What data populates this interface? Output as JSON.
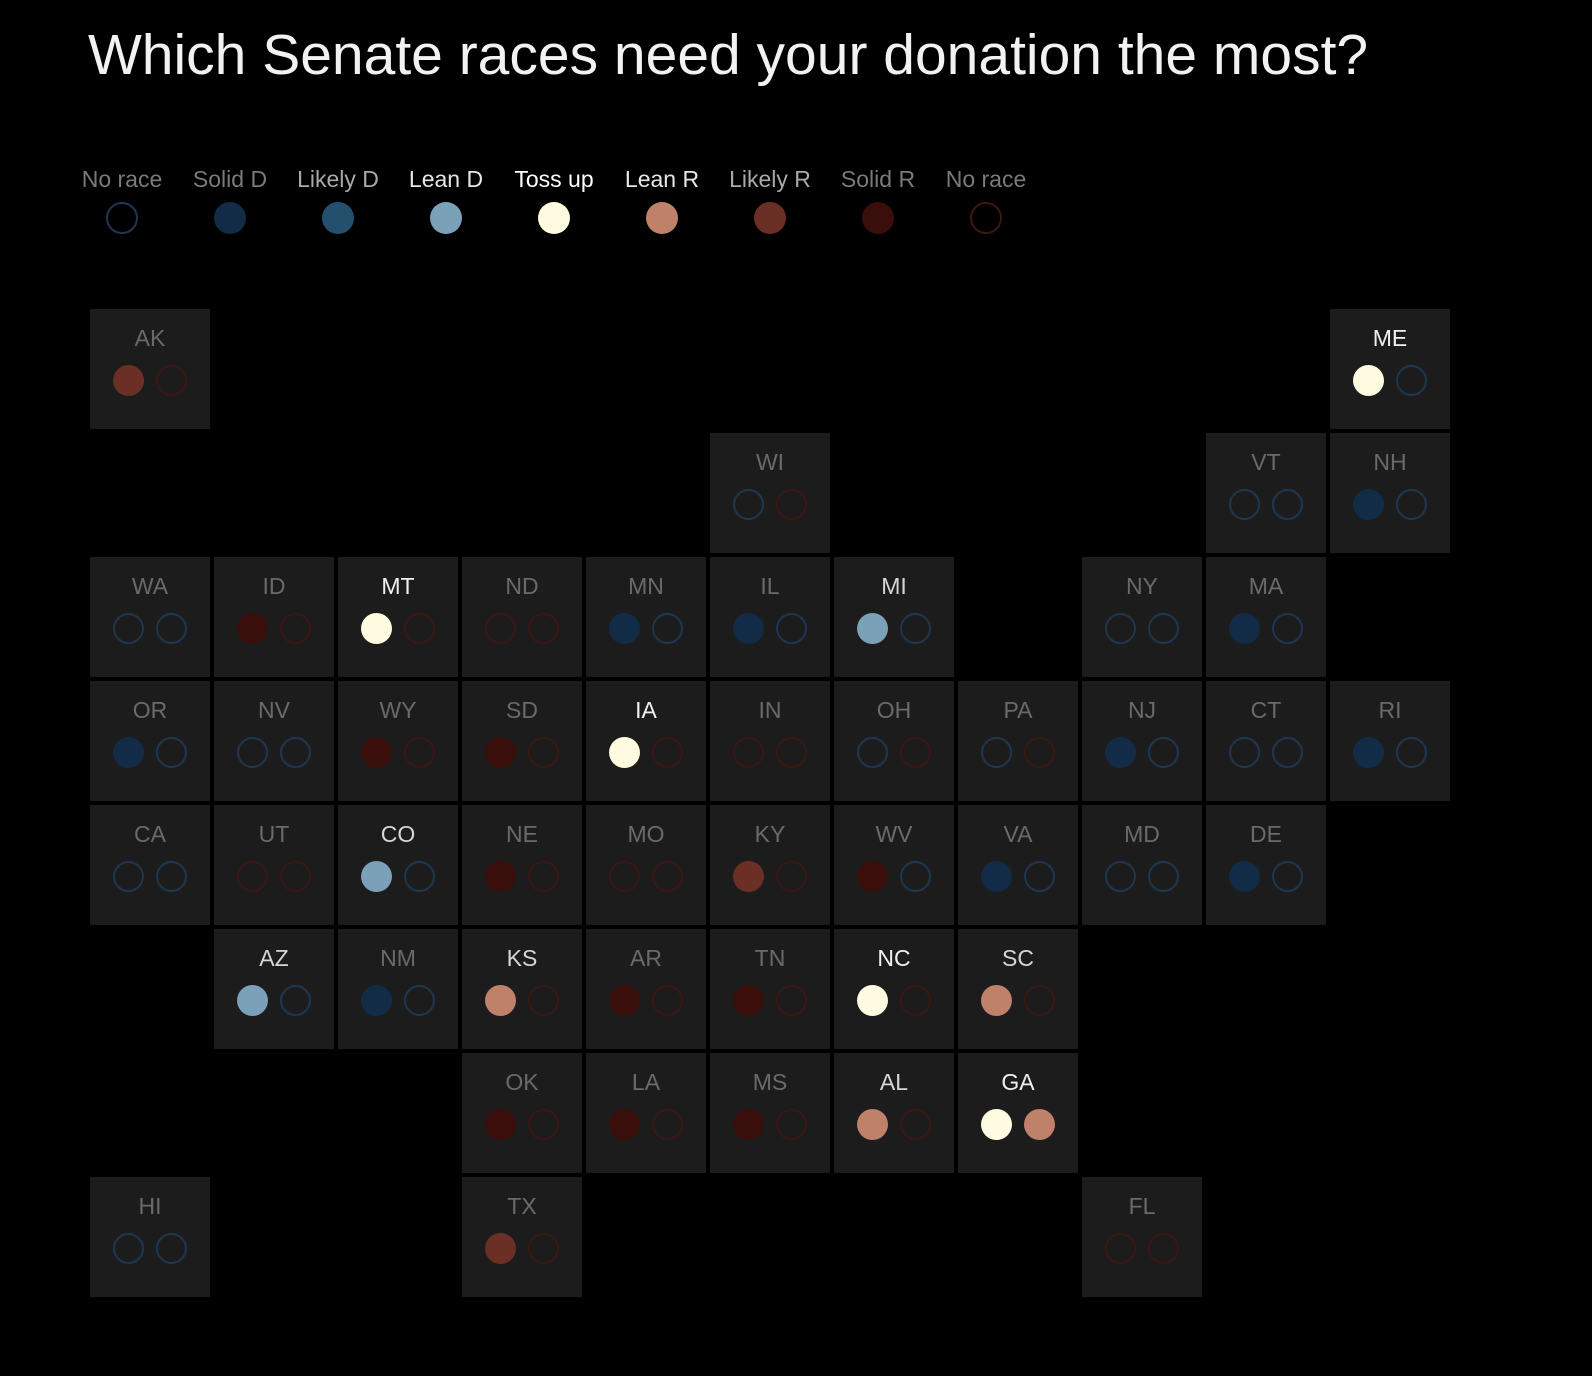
{
  "title": "Which Senate races need your donation the most?",
  "categories": {
    "none_d": {
      "label": "No race",
      "fill": null,
      "ring": "#1e3650",
      "label_color": "#7a7a7a"
    },
    "solid_d": {
      "label": "Solid D",
      "fill": "#122b47",
      "label_color": "#7a7a7a"
    },
    "likely_d": {
      "label": "Likely D",
      "fill": "#23506d",
      "label_color": "#a9a9a9"
    },
    "lean_d": {
      "label": "Lean D",
      "fill": "#7aa1b8",
      "label_color": "#e6e6e6"
    },
    "tossup": {
      "label": "Toss up",
      "fill": "#fffbe0",
      "label_color": "#ffffff"
    },
    "lean_r": {
      "label": "Lean R",
      "fill": "#c0816a",
      "label_color": "#e6e6e6"
    },
    "likely_r": {
      "label": "Likely R",
      "fill": "#6c2f26",
      "label_color": "#a9a9a9"
    },
    "solid_r": {
      "label": "Solid R",
      "fill": "#3a0f0b",
      "label_color": "#7a7a7a"
    },
    "none_r": {
      "label": "No race",
      "fill": null,
      "ring": "#3a1714",
      "label_color": "#7a7a7a"
    }
  },
  "legend_order": [
    "none_d",
    "solid_d",
    "likely_d",
    "lean_d",
    "tossup",
    "lean_r",
    "likely_r",
    "solid_r",
    "none_r"
  ],
  "states": [
    {
      "abbr": "AK",
      "race1": "likely_r",
      "race2": "none_r"
    },
    {
      "abbr": "ME",
      "race1": "tossup",
      "race2": "none_d"
    },
    {
      "abbr": "WI",
      "race1": "none_d",
      "race2": "none_r"
    },
    {
      "abbr": "VT",
      "race1": "none_d",
      "race2": "none_d"
    },
    {
      "abbr": "NH",
      "race1": "solid_d",
      "race2": "none_d"
    },
    {
      "abbr": "WA",
      "race1": "none_d",
      "race2": "none_d"
    },
    {
      "abbr": "ID",
      "race1": "solid_r",
      "race2": "none_r"
    },
    {
      "abbr": "MT",
      "race1": "tossup",
      "race2": "none_r"
    },
    {
      "abbr": "ND",
      "race1": "none_r",
      "race2": "none_r"
    },
    {
      "abbr": "MN",
      "race1": "solid_d",
      "race2": "none_d"
    },
    {
      "abbr": "IL",
      "race1": "solid_d",
      "race2": "none_d"
    },
    {
      "abbr": "MI",
      "race1": "lean_d",
      "race2": "none_d"
    },
    {
      "abbr": "NY",
      "race1": "none_d",
      "race2": "none_d"
    },
    {
      "abbr": "MA",
      "race1": "solid_d",
      "race2": "none_d"
    },
    {
      "abbr": "OR",
      "race1": "solid_d",
      "race2": "none_d"
    },
    {
      "abbr": "NV",
      "race1": "none_d",
      "race2": "none_d"
    },
    {
      "abbr": "WY",
      "race1": "solid_r",
      "race2": "none_r"
    },
    {
      "abbr": "SD",
      "race1": "solid_r",
      "race2": "none_r"
    },
    {
      "abbr": "IA",
      "race1": "tossup",
      "race2": "none_r"
    },
    {
      "abbr": "IN",
      "race1": "none_r",
      "race2": "none_r"
    },
    {
      "abbr": "OH",
      "race1": "none_d",
      "race2": "none_r"
    },
    {
      "abbr": "PA",
      "race1": "none_d",
      "race2": "none_r"
    },
    {
      "abbr": "NJ",
      "race1": "solid_d",
      "race2": "none_d"
    },
    {
      "abbr": "CT",
      "race1": "none_d",
      "race2": "none_d"
    },
    {
      "abbr": "RI",
      "race1": "solid_d",
      "race2": "none_d"
    },
    {
      "abbr": "CA",
      "race1": "none_d",
      "race2": "none_d"
    },
    {
      "abbr": "UT",
      "race1": "none_r",
      "race2": "none_r"
    },
    {
      "abbr": "CO",
      "race1": "lean_d",
      "race2": "none_d"
    },
    {
      "abbr": "NE",
      "race1": "solid_r",
      "race2": "none_r"
    },
    {
      "abbr": "MO",
      "race1": "none_r",
      "race2": "none_r"
    },
    {
      "abbr": "KY",
      "race1": "likely_r",
      "race2": "none_r"
    },
    {
      "abbr": "WV",
      "race1": "solid_r",
      "race2": "none_d"
    },
    {
      "abbr": "VA",
      "race1": "solid_d",
      "race2": "none_d"
    },
    {
      "abbr": "MD",
      "race1": "none_d",
      "race2": "none_d"
    },
    {
      "abbr": "DE",
      "race1": "solid_d",
      "race2": "none_d"
    },
    {
      "abbr": "AZ",
      "race1": "lean_d",
      "race2": "none_d"
    },
    {
      "abbr": "NM",
      "race1": "solid_d",
      "race2": "none_d"
    },
    {
      "abbr": "KS",
      "race1": "lean_r",
      "race2": "none_r"
    },
    {
      "abbr": "AR",
      "race1": "solid_r",
      "race2": "none_r"
    },
    {
      "abbr": "TN",
      "race1": "solid_r",
      "race2": "none_r"
    },
    {
      "abbr": "NC",
      "race1": "tossup",
      "race2": "none_r"
    },
    {
      "abbr": "SC",
      "race1": "lean_r",
      "race2": "none_r"
    },
    {
      "abbr": "OK",
      "race1": "solid_r",
      "race2": "none_r"
    },
    {
      "abbr": "LA",
      "race1": "solid_r",
      "race2": "none_r"
    },
    {
      "abbr": "MS",
      "race1": "solid_r",
      "race2": "none_r"
    },
    {
      "abbr": "AL",
      "race1": "lean_r",
      "race2": "none_r"
    },
    {
      "abbr": "GA",
      "race1": "tossup",
      "race2": "lean_r"
    },
    {
      "abbr": "HI",
      "race1": "none_d",
      "race2": "none_d"
    },
    {
      "abbr": "TX",
      "race1": "likely_r",
      "race2": "none_r"
    },
    {
      "abbr": "FL",
      "race1": "none_r",
      "race2": "none_r"
    }
  ]
}
